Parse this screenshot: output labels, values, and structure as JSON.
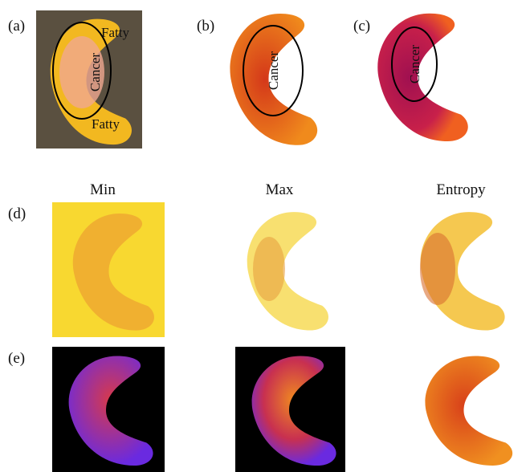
{
  "panels": [
    {
      "label": "(a)",
      "annotations": [
        "Fatty",
        "Cancer",
        "Fatty"
      ]
    },
    {
      "label": "(b)",
      "annotations": [
        "Cancer"
      ]
    },
    {
      "label": "(c)",
      "annotations": [
        "Cancer"
      ]
    }
  ],
  "columns": [
    "Min",
    "Max",
    "Entropy"
  ],
  "rows": [
    "(d)",
    "(e)"
  ]
}
